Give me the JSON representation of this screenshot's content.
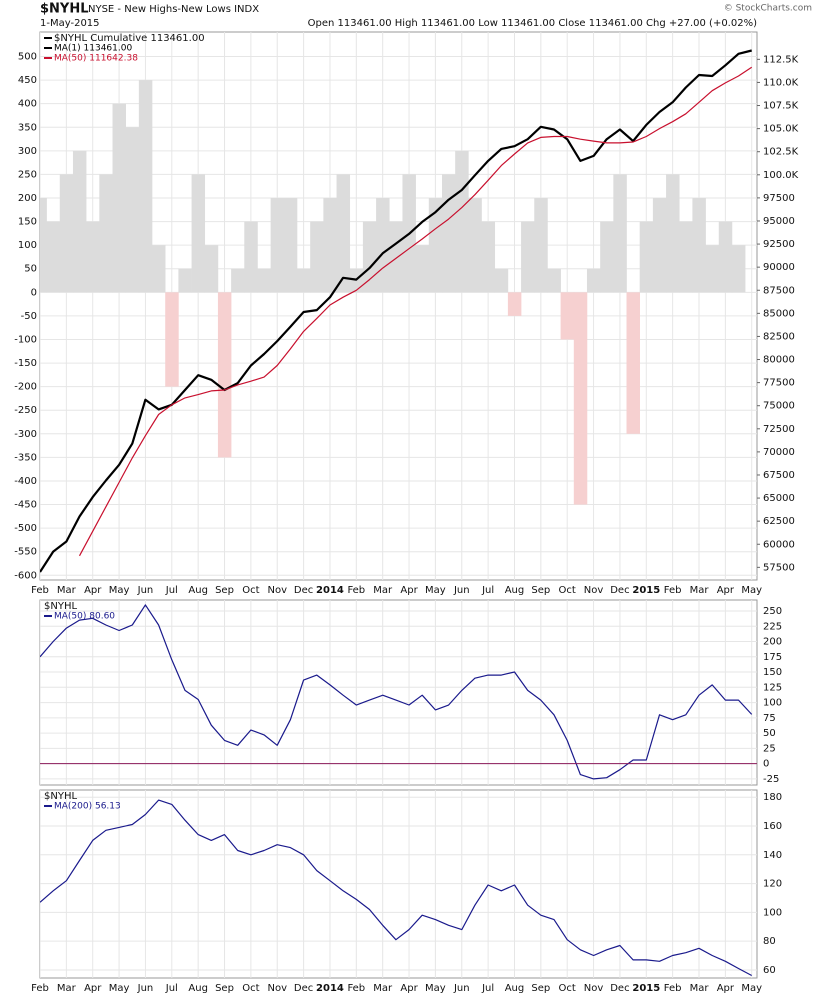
{
  "chart_data": [
    {
      "type": "line",
      "symbol": "$NYHL",
      "title": "NYSE - New Highs-New Lows INDX",
      "date": "1-May-2015",
      "quote": "Open 113461.00   High 113461.00   Low 113461.00   Close 113461.00   Chg +27.00 (+0.02%)",
      "source": "© StockCharts.com",
      "label": "$NYHL Cumulative 113461.00",
      "label_color": "#000000",
      "x": [
        0,
        0.5,
        1,
        1.5,
        2,
        2.5,
        3,
        3.5,
        4,
        4.5,
        5,
        5.5,
        6,
        6.5,
        7,
        7.5,
        8,
        8.5,
        9,
        9.5,
        10,
        10.5,
        11,
        11.5,
        12,
        12.5,
        13,
        13.5,
        14,
        14.5,
        15,
        15.5,
        16,
        16.5,
        17,
        17.5,
        18,
        18.5,
        19,
        19.5,
        20,
        20.5,
        21,
        21.5,
        22,
        22.5,
        23,
        23.5,
        24,
        24.5,
        25,
        25.5,
        26,
        26.5,
        27
      ],
      "xlim": [
        0,
        27.2
      ],
      "xticks": [
        {
          "value": 0,
          "label": "Feb"
        },
        {
          "value": 1,
          "label": "Mar"
        },
        {
          "value": 2,
          "label": "Apr"
        },
        {
          "value": 3,
          "label": "May"
        },
        {
          "value": 4,
          "label": "Jun"
        },
        {
          "value": 5,
          "label": "Jul"
        },
        {
          "value": 6,
          "label": "Aug"
        },
        {
          "value": 7,
          "label": "Sep"
        },
        {
          "value": 8,
          "label": "Oct"
        },
        {
          "value": 9,
          "label": "Nov"
        },
        {
          "value": 10,
          "label": "Dec"
        },
        {
          "value": 11,
          "label": "2014"
        },
        {
          "value": 12,
          "label": "Feb"
        },
        {
          "value": 13,
          "label": "Mar"
        },
        {
          "value": 14,
          "label": "Apr"
        },
        {
          "value": 15,
          "label": "May"
        },
        {
          "value": 16,
          "label": "Jun"
        },
        {
          "value": 17,
          "label": "Jul"
        },
        {
          "value": 18,
          "label": "Aug"
        },
        {
          "value": 19,
          "label": "Sep"
        },
        {
          "value": 20,
          "label": "Oct"
        },
        {
          "value": 21,
          "label": "Nov"
        },
        {
          "value": 22,
          "label": "Dec"
        },
        {
          "value": 23,
          "label": "2015"
        },
        {
          "value": 24,
          "label": "Feb"
        },
        {
          "value": 25,
          "label": "Mar"
        },
        {
          "value": 26,
          "label": "Apr"
        },
        {
          "value": 27,
          "label": "May"
        }
      ],
      "x_tick_labels": true,
      "grid": true,
      "ytick_side": "left",
      "ylim": [
        -610,
        552
      ],
      "yticks": [
        -600,
        -550,
        -500,
        -450,
        -400,
        -350,
        -300,
        -250,
        -200,
        -150,
        -100,
        -50,
        0,
        50,
        100,
        150,
        200,
        250,
        300,
        350,
        400,
        450,
        500
      ],
      "y2lim": [
        56130,
        115460
      ],
      "y2ticks": [
        57500,
        60000,
        62500,
        65000,
        67500,
        70000,
        72500,
        75000,
        77500,
        80000,
        82500,
        85000,
        87500,
        90000,
        92500,
        95000,
        97500,
        {
          "value": 100000,
          "label": "100.0K"
        },
        {
          "value": 102500,
          "label": "102.5K"
        },
        {
          "value": 105000,
          "label": "105.0K"
        },
        {
          "value": 107500,
          "label": "107.5K"
        },
        {
          "value": 110000,
          "label": "110.0K"
        },
        {
          "value": 112500,
          "label": "112.5K"
        }
      ],
      "area": {
        "color": "#dcdcdc",
        "negative_color": "#f6d0d0",
        "values": [
          200,
          150,
          250,
          300,
          150,
          250,
          400,
          350,
          450,
          100,
          -200,
          50,
          250,
          100,
          -350,
          50,
          150,
          50,
          200,
          200,
          50,
          150,
          200,
          250,
          50,
          150,
          200,
          150,
          250,
          100,
          200,
          250,
          300,
          200,
          150,
          50,
          -50,
          150,
          200,
          50,
          -100,
          -450,
          50,
          150,
          250,
          -300,
          150,
          200,
          250,
          150,
          200,
          100,
          150,
          100,
          0
        ]
      },
      "series": [
        {
          "name": "MA(1) 113461.00",
          "color": "#000000",
          "width": 2.2,
          "axis": "y2",
          "values": [
            57000,
            59200,
            60300,
            63000,
            65100,
            66900,
            68600,
            70900,
            75650,
            74600,
            75100,
            76700,
            78300,
            77800,
            76700,
            77450,
            79350,
            80600,
            82000,
            83550,
            85150,
            85350,
            86750,
            88850,
            88650,
            89900,
            91500,
            92550,
            93600,
            94900,
            95950,
            97300,
            98350,
            99950,
            101500,
            102800,
            103100,
            103850,
            105200,
            104900,
            103850,
            101500,
            102050,
            103850,
            104900,
            103650,
            105400,
            106800,
            107850,
            109450,
            110800,
            110700,
            111850,
            113100,
            113461
          ]
        },
        {
          "name": "MA(50) 111642.38",
          "color": "#c8102e",
          "width": 1.2,
          "axis": "y2",
          "values": [
            null,
            null,
            null,
            58750,
            61400,
            64050,
            66700,
            69350,
            71750,
            74050,
            75100,
            75850,
            76200,
            76600,
            76700,
            77250,
            77650,
            78100,
            79350,
            81150,
            83050,
            84450,
            85900,
            86750,
            87500,
            88650,
            89900,
            90950,
            92000,
            93050,
            94150,
            95200,
            96450,
            97850,
            99400,
            101000,
            102250,
            103450,
            104050,
            104150,
            104150,
            103850,
            103650,
            103450,
            103450,
            103550,
            104150,
            105000,
            105750,
            106600,
            107850,
            109100,
            109950,
            110700,
            111642.38
          ]
        }
      ]
    },
    {
      "type": "line",
      "label": "$NYHL",
      "x_tick_labels": false,
      "grid": true,
      "ytick_side": "right",
      "x": [
        0,
        0.5,
        1,
        1.5,
        2,
        2.5,
        3,
        3.5,
        4,
        4.5,
        5,
        5.5,
        6,
        6.5,
        7,
        7.5,
        8,
        8.5,
        9,
        9.5,
        10,
        10.5,
        11,
        11.5,
        12,
        12.5,
        13,
        13.5,
        14,
        14.5,
        15,
        15.5,
        16,
        16.5,
        17,
        17.5,
        18,
        18.5,
        19,
        19.5,
        20,
        20.5,
        21,
        21.5,
        22,
        22.5,
        23,
        23.5,
        24,
        24.5,
        25,
        25.5,
        26,
        26.5,
        27
      ],
      "xlim": [
        0,
        27.2
      ],
      "xticks": [
        {
          "value": 0,
          "label": "Feb"
        },
        {
          "value": 1,
          "label": "Mar"
        },
        {
          "value": 2,
          "label": "Apr"
        },
        {
          "value": 3,
          "label": "May"
        },
        {
          "value": 4,
          "label": "Jun"
        },
        {
          "value": 5,
          "label": "Jul"
        },
        {
          "value": 6,
          "label": "Aug"
        },
        {
          "value": 7,
          "label": "Sep"
        },
        {
          "value": 8,
          "label": "Oct"
        },
        {
          "value": 9,
          "label": "Nov"
        },
        {
          "value": 10,
          "label": "Dec"
        },
        {
          "value": 11,
          "label": "2014"
        },
        {
          "value": 12,
          "label": "Feb"
        },
        {
          "value": 13,
          "label": "Mar"
        },
        {
          "value": 14,
          "label": "Apr"
        },
        {
          "value": 15,
          "label": "May"
        },
        {
          "value": 16,
          "label": "Jun"
        },
        {
          "value": 17,
          "label": "Jul"
        },
        {
          "value": 18,
          "label": "Aug"
        },
        {
          "value": 19,
          "label": "Sep"
        },
        {
          "value": 20,
          "label": "Oct"
        },
        {
          "value": 21,
          "label": "Nov"
        },
        {
          "value": 22,
          "label": "Dec"
        },
        {
          "value": 23,
          "label": "2015"
        },
        {
          "value": 24,
          "label": "Feb"
        },
        {
          "value": 25,
          "label": "Mar"
        },
        {
          "value": 26,
          "label": "Apr"
        },
        {
          "value": 27,
          "label": "May"
        }
      ],
      "ylim": [
        -35,
        268
      ],
      "yticks": [
        -25,
        0,
        25,
        50,
        75,
        100,
        125,
        150,
        175,
        200,
        225,
        250
      ],
      "zero_line": {
        "value": 0,
        "color": "#8b1a5a"
      },
      "series": [
        {
          "name": "MA(50) 80.60",
          "color": "#1a1a8c",
          "width": 1.2,
          "values": [
            175,
            200,
            222,
            235,
            238,
            227,
            218,
            227,
            260,
            227,
            170,
            120,
            105,
            63,
            38,
            30,
            55,
            47,
            30,
            72,
            137,
            145,
            129,
            112,
            96,
            104,
            112,
            104,
            96,
            112,
            88,
            96,
            120,
            140,
            145,
            145,
            150,
            120,
            104,
            80,
            38,
            -18,
            -25,
            -23,
            -10,
            6,
            6,
            80,
            72,
            80,
            112,
            129,
            104,
            104,
            80.6
          ]
        }
      ]
    },
    {
      "type": "line",
      "label": "$NYHL",
      "x_tick_labels": true,
      "grid": true,
      "ytick_side": "right",
      "x": [
        0,
        0.5,
        1,
        1.5,
        2,
        2.5,
        3,
        3.5,
        4,
        4.5,
        5,
        5.5,
        6,
        6.5,
        7,
        7.5,
        8,
        8.5,
        9,
        9.5,
        10,
        10.5,
        11,
        11.5,
        12,
        12.5,
        13,
        13.5,
        14,
        14.5,
        15,
        15.5,
        16,
        16.5,
        17,
        17.5,
        18,
        18.5,
        19,
        19.5,
        20,
        20.5,
        21,
        21.5,
        22,
        22.5,
        23,
        23.5,
        24,
        24.5,
        25,
        25.5,
        26,
        26.5,
        27
      ],
      "xlim": [
        0,
        27.2
      ],
      "xticks": [
        {
          "value": 0,
          "label": "Feb"
        },
        {
          "value": 1,
          "label": "Mar"
        },
        {
          "value": 2,
          "label": "Apr"
        },
        {
          "value": 3,
          "label": "May"
        },
        {
          "value": 4,
          "label": "Jun"
        },
        {
          "value": 5,
          "label": "Jul"
        },
        {
          "value": 6,
          "label": "Aug"
        },
        {
          "value": 7,
          "label": "Sep"
        },
        {
          "value": 8,
          "label": "Oct"
        },
        {
          "value": 9,
          "label": "Nov"
        },
        {
          "value": 10,
          "label": "Dec"
        },
        {
          "value": 11,
          "label": "2014"
        },
        {
          "value": 12,
          "label": "Feb"
        },
        {
          "value": 13,
          "label": "Mar"
        },
        {
          "value": 14,
          "label": "Apr"
        },
        {
          "value": 15,
          "label": "May"
        },
        {
          "value": 16,
          "label": "Jun"
        },
        {
          "value": 17,
          "label": "Jul"
        },
        {
          "value": 18,
          "label": "Aug"
        },
        {
          "value": 19,
          "label": "Sep"
        },
        {
          "value": 20,
          "label": "Oct"
        },
        {
          "value": 21,
          "label": "Nov"
        },
        {
          "value": 22,
          "label": "Dec"
        },
        {
          "value": 23,
          "label": "2015"
        },
        {
          "value": 24,
          "label": "Feb"
        },
        {
          "value": 25,
          "label": "Mar"
        },
        {
          "value": 26,
          "label": "Apr"
        },
        {
          "value": 27,
          "label": "May"
        }
      ],
      "ylim": [
        54.4,
        185
      ],
      "yticks": [
        60,
        80,
        100,
        120,
        140,
        160,
        180
      ],
      "series": [
        {
          "name": "MA(200) 56.13",
          "color": "#1a1a8c",
          "width": 1.2,
          "values": [
            107,
            115,
            122,
            136,
            150,
            157,
            159,
            161,
            168,
            178,
            175,
            164,
            154,
            150,
            154,
            143,
            140,
            143,
            147,
            145,
            140,
            129,
            122,
            115,
            109,
            102,
            91,
            81,
            88,
            98,
            95,
            91,
            88,
            105,
            119,
            115,
            119,
            105,
            98,
            95,
            81,
            74,
            70,
            74,
            77,
            67,
            67,
            66,
            70,
            72,
            75,
            70,
            66,
            61,
            56.13
          ]
        }
      ]
    }
  ]
}
